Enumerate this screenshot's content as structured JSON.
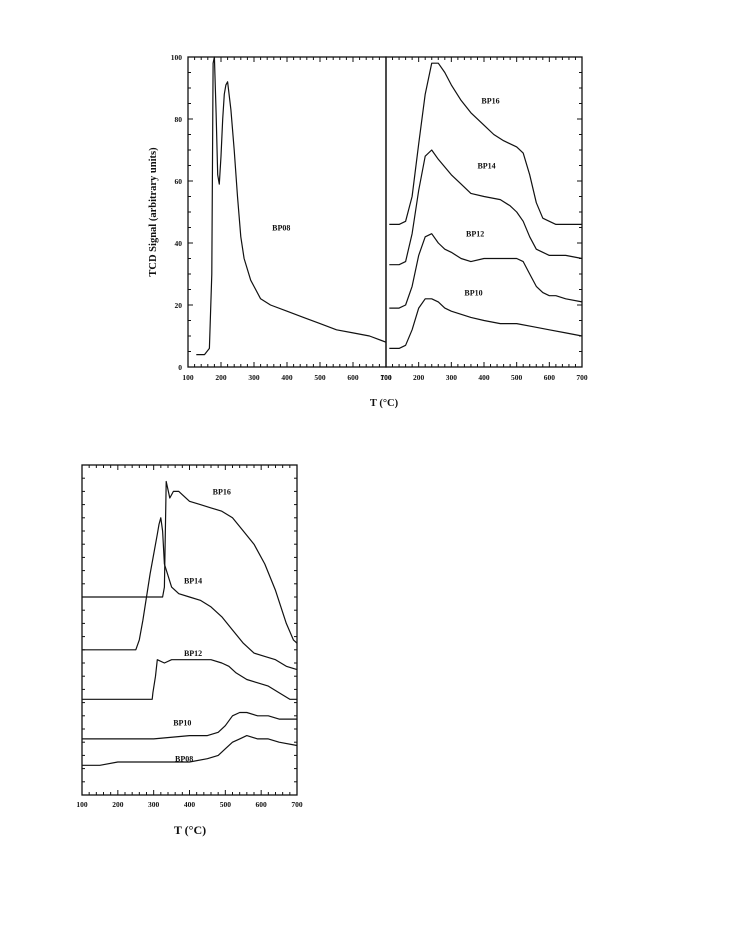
{
  "chart_data": [
    {
      "type": "line",
      "ylabel": "TCD Signal (arbitrary units)",
      "xlabel": "T (°C)",
      "ylim": [
        0,
        100
      ],
      "yticks": [
        "0",
        "20",
        "40",
        "60",
        "80",
        "100"
      ],
      "panels": [
        {
          "xlim": [
            100,
            700
          ],
          "xticks": [
            "100",
            "200",
            "300",
            "400",
            "500",
            "600",
            "700"
          ],
          "series": [
            {
              "name": "BP08",
              "x": [
                125,
                150,
                165,
                172,
                176,
                180,
                185,
                190,
                195,
                200,
                205,
                210,
                215,
                220,
                230,
                240,
                250,
                260,
                270,
                290,
                320,
                350,
                400,
                450,
                500,
                550,
                600,
                650,
                700
              ],
              "y": [
                4,
                4,
                6,
                30,
                98,
                100,
                82,
                62,
                59,
                68,
                80,
                88,
                91,
                92,
                83,
                70,
                55,
                42,
                35,
                28,
                22,
                20,
                18,
                16,
                14,
                12,
                11,
                10,
                8
              ]
            }
          ]
        },
        {
          "xlim": [
            100,
            700
          ],
          "xticks": [
            "100",
            "200",
            "300",
            "400",
            "500",
            "600",
            "700"
          ],
          "series": [
            {
              "name": "BP16",
              "x": [
                110,
                140,
                160,
                180,
                200,
                220,
                240,
                260,
                280,
                300,
                330,
                360,
                400,
                430,
                460,
                480,
                500,
                520,
                540,
                560,
                580,
                600,
                620,
                650,
                700
              ],
              "y": [
                46,
                46,
                47,
                55,
                72,
                88,
                98,
                98,
                95,
                91,
                86,
                82,
                78,
                75,
                73,
                72,
                71,
                69,
                62,
                53,
                48,
                47,
                46,
                46,
                46
              ]
            },
            {
              "name": "BP14",
              "x": [
                110,
                140,
                160,
                180,
                200,
                220,
                240,
                260,
                300,
                330,
                360,
                400,
                450,
                480,
                500,
                520,
                540,
                560,
                580,
                600,
                620,
                650,
                700
              ],
              "y": [
                33,
                33,
                34,
                43,
                57,
                68,
                70,
                67,
                62,
                59,
                56,
                55,
                54,
                52,
                50,
                47,
                42,
                38,
                37,
                36,
                36,
                36,
                35
              ]
            },
            {
              "name": "BP12",
              "x": [
                110,
                140,
                160,
                180,
                200,
                220,
                240,
                260,
                280,
                300,
                330,
                360,
                400,
                450,
                480,
                500,
                520,
                540,
                560,
                580,
                600,
                620,
                650,
                700
              ],
              "y": [
                19,
                19,
                20,
                26,
                36,
                42,
                43,
                40,
                38,
                37,
                35,
                34,
                35,
                35,
                35,
                35,
                34,
                30,
                26,
                24,
                23,
                23,
                22,
                21
              ]
            },
            {
              "name": "BP10",
              "x": [
                110,
                140,
                160,
                180,
                200,
                220,
                240,
                260,
                280,
                300,
                330,
                360,
                400,
                450,
                500,
                550,
                600,
                650,
                700
              ],
              "y": [
                6,
                6,
                7,
                12,
                19,
                22,
                22,
                21,
                19,
                18,
                17,
                16,
                15,
                14,
                14,
                13,
                12,
                11,
                10
              ]
            }
          ],
          "labels_shown": [
            "BP16",
            "BP14",
            "BP12",
            "BP10"
          ]
        }
      ]
    },
    {
      "type": "line",
      "xlabel": "T (°C)",
      "xlim": [
        100,
        700
      ],
      "xticks": [
        "100",
        "200",
        "300",
        "400",
        "500",
        "600",
        "700"
      ],
      "ylim": [
        0,
        100
      ],
      "series": [
        {
          "name": "BP16",
          "x": [
            100,
            200,
            300,
            325,
            330,
            335,
            345,
            355,
            370,
            400,
            430,
            460,
            490,
            520,
            550,
            580,
            610,
            640,
            670,
            690,
            700
          ],
          "y": [
            60,
            60,
            60,
            60,
            63,
            95,
            90,
            92,
            92,
            89,
            88,
            87,
            86,
            84,
            80,
            76,
            70,
            62,
            52,
            47,
            46
          ]
        },
        {
          "name": "BP14",
          "x": [
            100,
            200,
            250,
            260,
            270,
            280,
            290,
            300,
            310,
            315,
            320,
            325,
            330,
            350,
            370,
            400,
            430,
            460,
            490,
            520,
            550,
            580,
            610,
            640,
            670,
            700
          ],
          "y": [
            44,
            44,
            44,
            47,
            53,
            60,
            67,
            73,
            79,
            82,
            84,
            80,
            70,
            63,
            61,
            60,
            59,
            57,
            54,
            50,
            46,
            43,
            42,
            41,
            39,
            38
          ]
        },
        {
          "name": "BP12",
          "x": [
            100,
            200,
            250,
            296,
            298,
            305,
            310,
            330,
            350,
            400,
            430,
            460,
            490,
            510,
            530,
            560,
            590,
            620,
            650,
            680,
            700
          ],
          "y": [
            29,
            29,
            29,
            29,
            31,
            36,
            41,
            40,
            41,
            41,
            41,
            41,
            40,
            39,
            37,
            35,
            34,
            33,
            31,
            29,
            29
          ]
        },
        {
          "name": "BP10",
          "x": [
            100,
            200,
            300,
            400,
            450,
            480,
            500,
            520,
            540,
            560,
            590,
            620,
            650,
            700
          ],
          "y": [
            17,
            17,
            17,
            18,
            18,
            19,
            21,
            24,
            25,
            25,
            24,
            24,
            23,
            23
          ]
        },
        {
          "name": "BP08",
          "x": [
            100,
            150,
            200,
            250,
            300,
            350,
            400,
            450,
            480,
            500,
            520,
            540,
            560,
            590,
            620,
            650,
            700
          ],
          "y": [
            9,
            9,
            10,
            10,
            10,
            10,
            10,
            11,
            12,
            14,
            16,
            17,
            18,
            17,
            17,
            16,
            15
          ]
        }
      ]
    }
  ]
}
